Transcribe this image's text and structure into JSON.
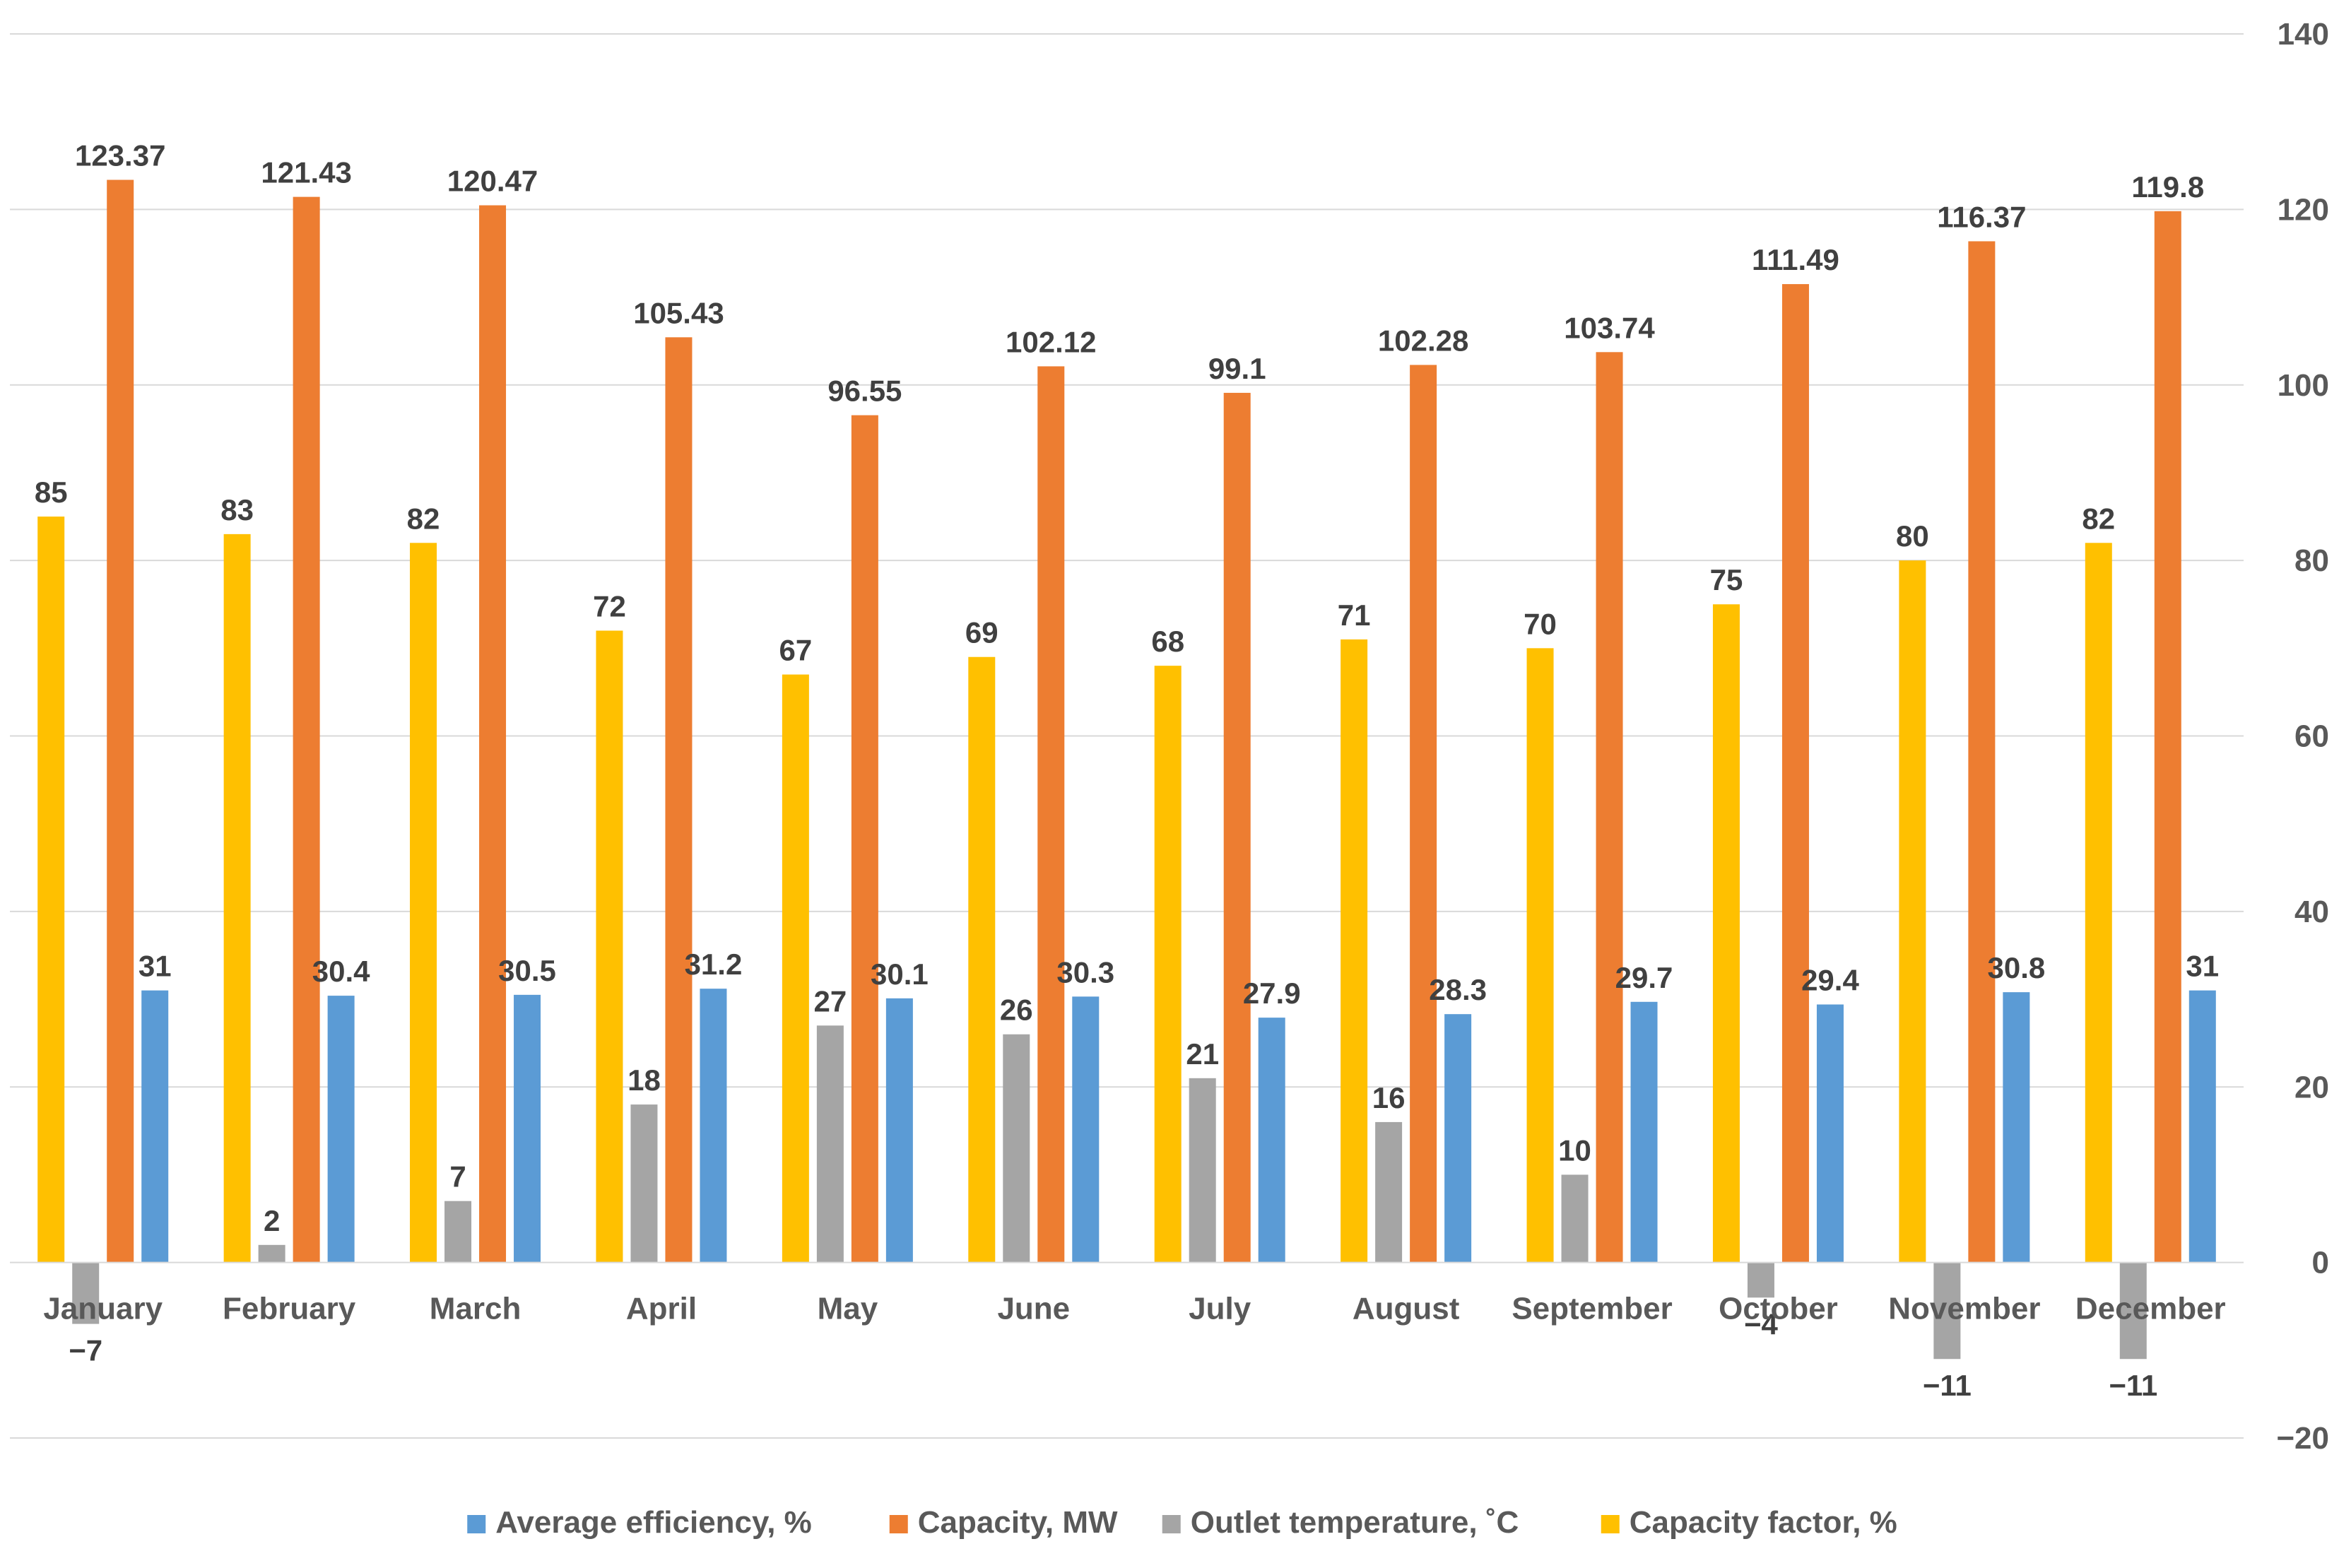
{
  "chart_data": {
    "type": "bar",
    "title": "",
    "xlabel": "",
    "ylabel": "",
    "ylim": [
      -20,
      140
    ],
    "yticks": [
      -20,
      0,
      20,
      40,
      60,
      80,
      100,
      120,
      140
    ],
    "ytick_labels": [
      "−20",
      "0",
      "20",
      "40",
      "60",
      "80",
      "100",
      "120",
      "140"
    ],
    "y_axis_position": "right",
    "grid": true,
    "legend_position": "bottom",
    "categories": [
      "January",
      "February",
      "March",
      "April",
      "May",
      "June",
      "July",
      "August",
      "September",
      "October",
      "November",
      "December"
    ],
    "series": [
      {
        "name": "Capacity factor, %",
        "color": "#FFC000",
        "values": [
          85,
          83,
          82,
          72,
          67,
          69,
          68,
          71,
          70,
          75,
          80,
          82
        ],
        "labels": [
          "85",
          "83",
          "82",
          "72",
          "67",
          "69",
          "68",
          "71",
          "70",
          "75",
          "80",
          "82"
        ]
      },
      {
        "name": "Outlet temperature, ˚C",
        "color": "#A5A5A5",
        "values": [
          -7,
          2,
          7,
          18,
          27,
          26,
          21,
          16,
          10,
          -4,
          -11,
          -11
        ],
        "labels": [
          "−7",
          "2",
          "7",
          "18",
          "27",
          "26",
          "21",
          "16",
          "10",
          "−4",
          "−11",
          "−11"
        ]
      },
      {
        "name": "Capacity, MW",
        "color": "#ED7D31",
        "values": [
          123.37,
          121.43,
          120.47,
          105.43,
          96.55,
          102.12,
          99.1,
          102.28,
          103.74,
          111.49,
          116.37,
          119.8
        ],
        "labels": [
          "123.37",
          "121.43",
          "120.47",
          "105.43",
          "96.55",
          "102.12",
          "99.1",
          "102.28",
          "103.74",
          "111.49",
          "116.37",
          "119.8"
        ]
      },
      {
        "name": "Average efficiency, %",
        "color": "#5B9BD5",
        "values": [
          31,
          30.4,
          30.5,
          31.2,
          30.1,
          30.3,
          27.9,
          28.3,
          29.7,
          29.4,
          30.8,
          31
        ],
        "labels": [
          "31",
          "30.4",
          "30.5",
          "31.2",
          "30.1",
          "30.3",
          "27.9",
          "28.3",
          "29.7",
          "29.4",
          "30.8",
          "31"
        ]
      }
    ],
    "legend_order": [
      "Average efficiency, %",
      "Capacity, MW",
      "Outlet temperature, ˚C",
      "Capacity factor, %"
    ]
  }
}
